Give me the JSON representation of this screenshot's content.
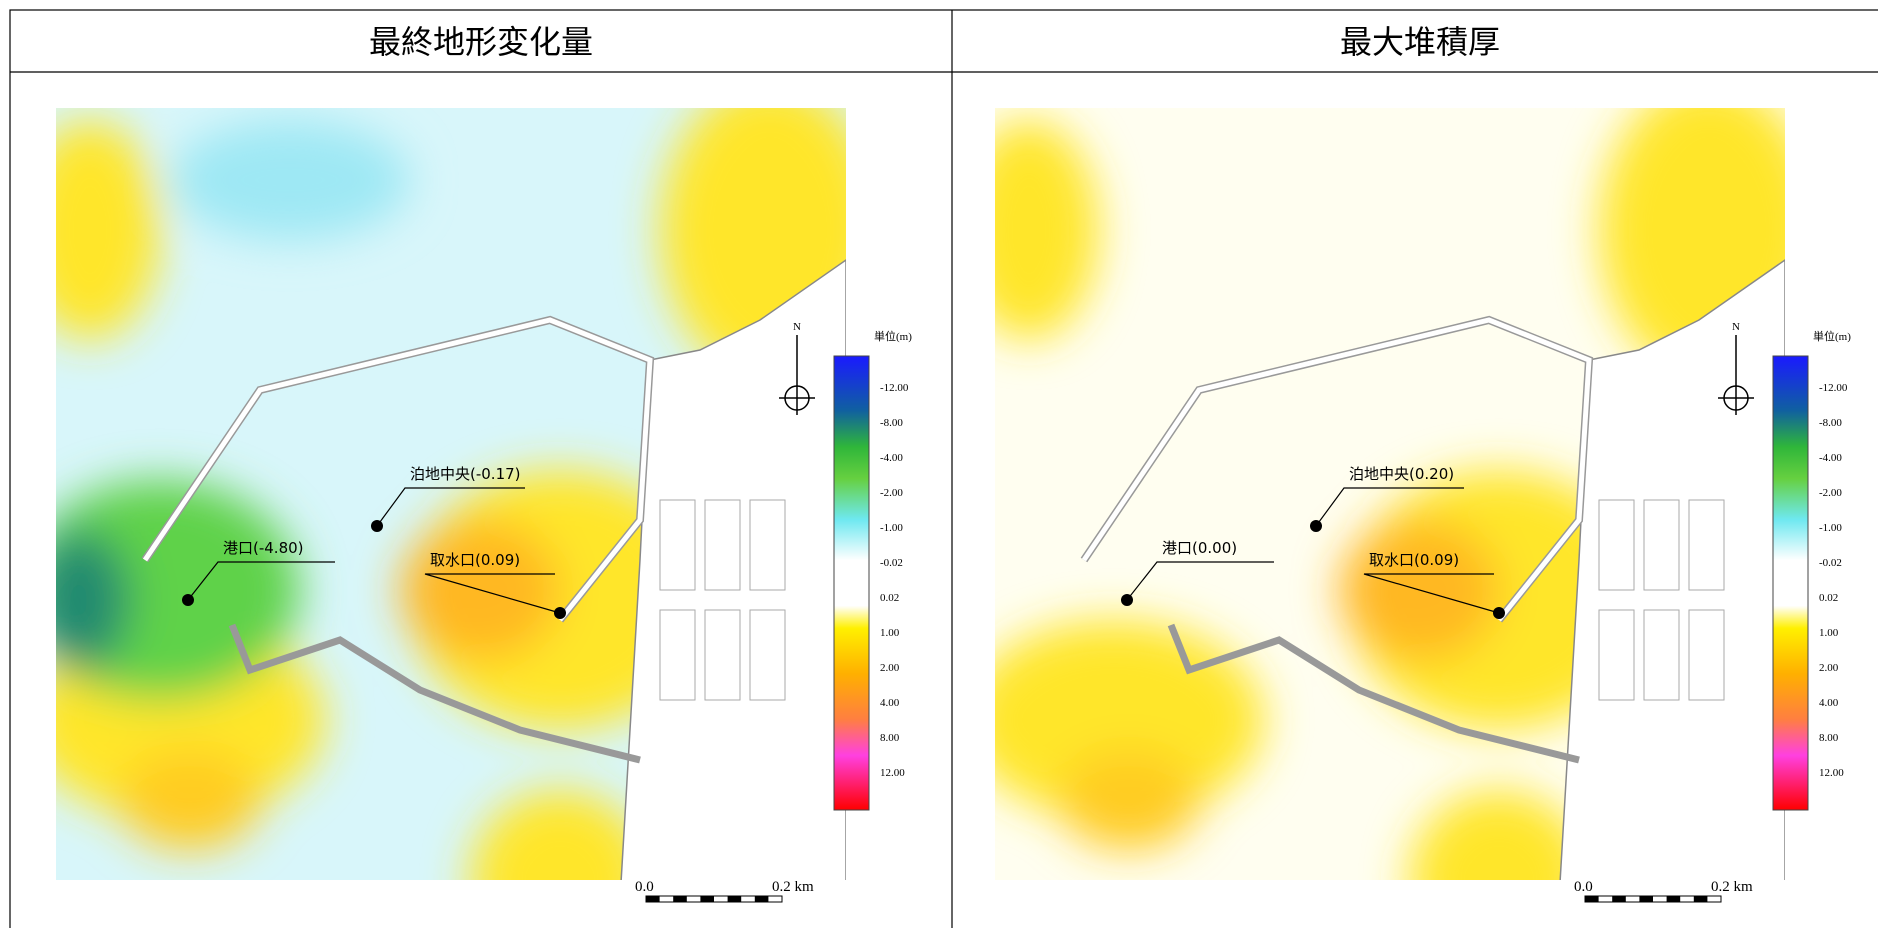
{
  "panels": [
    {
      "title": "最終地形変化量",
      "points": [
        {
          "label": "港口(-4.80)"
        },
        {
          "label": "泊地中央(-0.17)"
        },
        {
          "label": "取水口(0.09)"
        }
      ]
    },
    {
      "title": "最大堆積厚",
      "points": [
        {
          "label": "港口(0.00)"
        },
        {
          "label": "泊地中央(0.20)"
        },
        {
          "label": "取水口(0.09)"
        }
      ]
    }
  ],
  "legend": {
    "unit": "単位(m)",
    "ticks": [
      "-12.00",
      "-8.00",
      "-4.00",
      "-2.00",
      "-1.00",
      "-0.02",
      "0.02",
      "1.00",
      "2.00",
      "4.00",
      "8.00",
      "12.00"
    ]
  },
  "north": "N",
  "scale": {
    "start": "0.0",
    "end": "0.2 km"
  }
}
